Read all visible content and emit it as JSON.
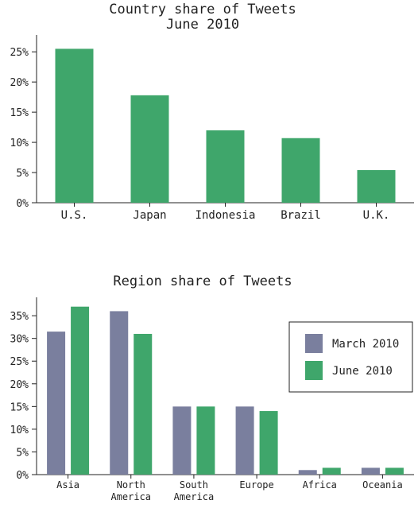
{
  "chart_data": [
    {
      "type": "bar",
      "title": [
        "Country share of Tweets",
        "June 2010"
      ],
      "categories": [
        "U.S.",
        "Japan",
        "Indonesia",
        "Brazil",
        "U.K."
      ],
      "series": [
        {
          "name": "June 2010",
          "color": "#3fa66b",
          "values": [
            25.5,
            17.8,
            12.0,
            10.7,
            5.4
          ]
        }
      ],
      "yticks": [
        "0%",
        "5%",
        "10%",
        "15%",
        "20%",
        "25%"
      ],
      "ylim": [
        0,
        27
      ],
      "grid": false,
      "legend": "none"
    },
    {
      "type": "bar",
      "title": [
        "Region share of Tweets"
      ],
      "categories": [
        [
          "Asia"
        ],
        [
          "North",
          "America"
        ],
        [
          "South",
          "America"
        ],
        [
          "Europe"
        ],
        [
          "Africa"
        ],
        [
          "Oceania"
        ]
      ],
      "series": [
        {
          "name": "March 2010",
          "color": "#7a7f9e",
          "values": [
            31.5,
            36.0,
            15.0,
            15.0,
            1.0,
            1.5
          ]
        },
        {
          "name": "June 2010",
          "color": "#3fa66b",
          "values": [
            37.0,
            31.0,
            15.0,
            14.0,
            1.5,
            1.5
          ]
        }
      ],
      "yticks": [
        "0%",
        "5%",
        "10%",
        "15%",
        "20%",
        "25%",
        "30%",
        "35%"
      ],
      "ylim": [
        0,
        38
      ],
      "grid": false,
      "legend": "right"
    }
  ]
}
